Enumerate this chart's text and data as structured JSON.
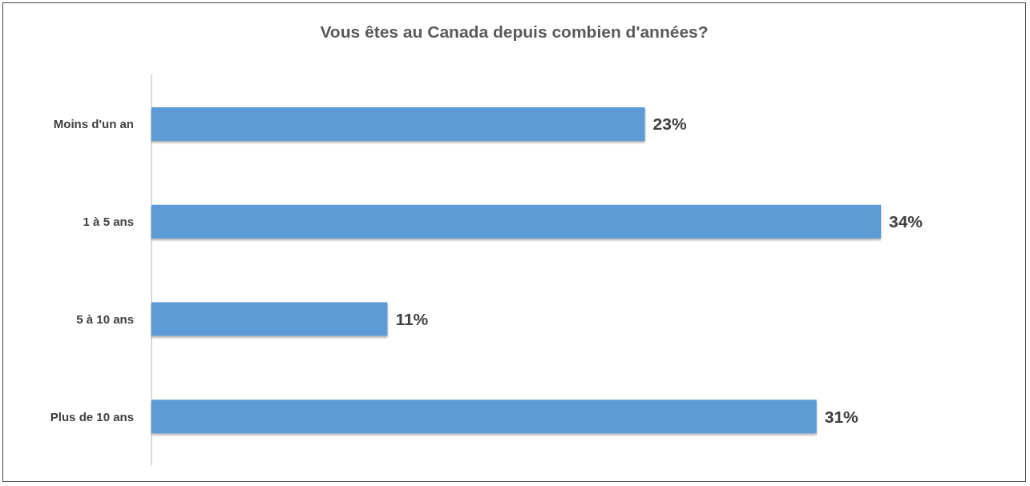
{
  "chart_data": {
    "type": "bar",
    "orientation": "horizontal",
    "title": "Vous êtes au Canada depuis combien d'années?",
    "categories": [
      "Moins d'un an",
      "1 à 5 ans",
      "5 à 10 ans",
      "Plus de 10 ans"
    ],
    "values": [
      23,
      34,
      11,
      31
    ],
    "color": "#5b9bd5",
    "value_labels": [
      "23%",
      "34%",
      "11%",
      "31%"
    ]
  }
}
